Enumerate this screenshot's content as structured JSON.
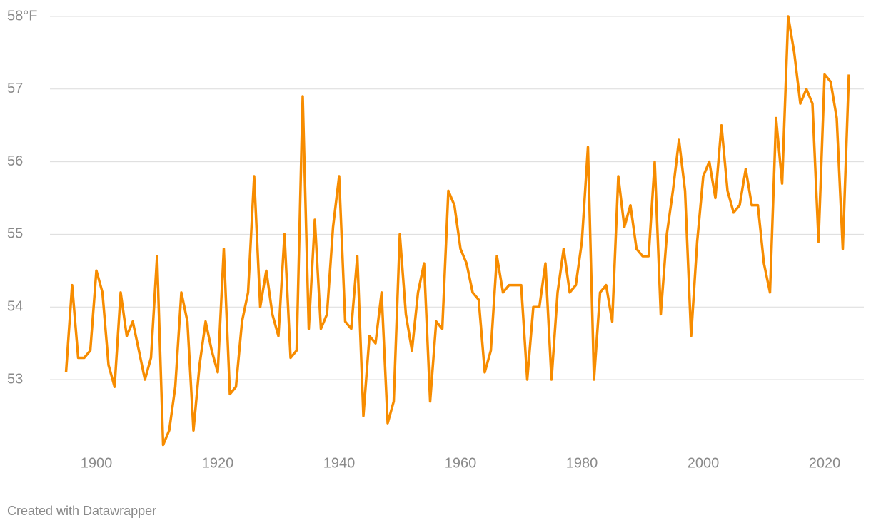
{
  "chart_data": {
    "type": "line",
    "x": [
      1895,
      1896,
      1897,
      1898,
      1899,
      1900,
      1901,
      1902,
      1903,
      1904,
      1905,
      1906,
      1907,
      1908,
      1909,
      1910,
      1911,
      1912,
      1913,
      1914,
      1915,
      1916,
      1917,
      1918,
      1919,
      1920,
      1921,
      1922,
      1923,
      1924,
      1925,
      1926,
      1927,
      1928,
      1929,
      1930,
      1931,
      1932,
      1933,
      1934,
      1935,
      1936,
      1937,
      1938,
      1939,
      1940,
      1941,
      1942,
      1943,
      1944,
      1945,
      1946,
      1947,
      1948,
      1949,
      1950,
      1951,
      1952,
      1953,
      1954,
      1955,
      1956,
      1957,
      1958,
      1959,
      1960,
      1961,
      1962,
      1963,
      1964,
      1965,
      1966,
      1967,
      1968,
      1969,
      1970,
      1971,
      1972,
      1973,
      1974,
      1975,
      1976,
      1977,
      1978,
      1979,
      1980,
      1981,
      1982,
      1983,
      1984,
      1985,
      1986,
      1987,
      1988,
      1989,
      1990,
      1991,
      1992,
      1993,
      1994,
      1995,
      1996,
      1997,
      1998,
      1999,
      2000,
      2001,
      2002,
      2003,
      2004,
      2005,
      2006,
      2007,
      2008,
      2009,
      2010,
      2011,
      2012,
      2013,
      2014,
      2015,
      2016,
      2017,
      2018,
      2019,
      2020,
      2021,
      2022,
      2023,
      2024
    ],
    "series": [
      {
        "color": "#f78c00",
        "values": [
          53.1,
          54.3,
          53.3,
          53.3,
          53.4,
          54.5,
          54.2,
          53.2,
          52.9,
          54.2,
          53.6,
          53.8,
          53.4,
          53.0,
          53.3,
          54.7,
          52.1,
          52.3,
          52.9,
          54.2,
          53.8,
          52.3,
          53.2,
          53.8,
          53.4,
          53.1,
          54.8,
          52.8,
          52.9,
          53.8,
          54.2,
          55.8,
          54.0,
          54.5,
          53.9,
          53.6,
          55.0,
          53.3,
          53.4,
          56.9,
          53.7,
          55.2,
          53.7,
          53.9,
          55.1,
          55.8,
          53.8,
          53.7,
          54.7,
          52.5,
          53.6,
          53.5,
          54.2,
          52.4,
          52.7,
          55.0,
          53.9,
          53.4,
          54.2,
          54.6,
          52.7,
          53.8,
          53.7,
          55.6,
          55.4,
          54.8,
          54.6,
          54.2,
          54.1,
          53.1,
          53.4,
          54.7,
          54.2,
          54.3,
          54.3,
          54.3,
          53.0,
          54.0,
          54.0,
          54.6,
          53.0,
          54.2,
          54.8,
          54.2,
          54.3,
          54.9,
          56.2,
          53.0,
          54.2,
          54.3,
          53.8,
          55.8,
          55.1,
          55.4,
          54.8,
          54.7,
          54.7,
          56.0,
          53.9,
          55.0,
          55.6,
          56.3,
          55.6,
          53.6,
          54.9,
          55.8,
          56.0,
          55.5,
          56.5,
          55.6,
          55.3,
          55.4,
          55.9,
          55.4,
          55.4,
          54.6,
          54.2,
          56.6,
          55.7,
          58.0,
          57.5,
          56.8,
          57.0,
          56.8,
          54.9,
          57.2,
          57.1,
          56.6,
          54.8,
          57.2
        ]
      }
    ],
    "xlim": [
      1895,
      2024
    ],
    "xticks": [
      1900,
      1920,
      1940,
      1960,
      1980,
      2000,
      2020
    ],
    "ylim": [
      52,
      58
    ],
    "yticks": [
      53,
      54,
      55,
      56,
      57,
      {
        "value": 58,
        "label": "58°F"
      }
    ],
    "grid": true,
    "credit": "Created with Datawrapper"
  }
}
